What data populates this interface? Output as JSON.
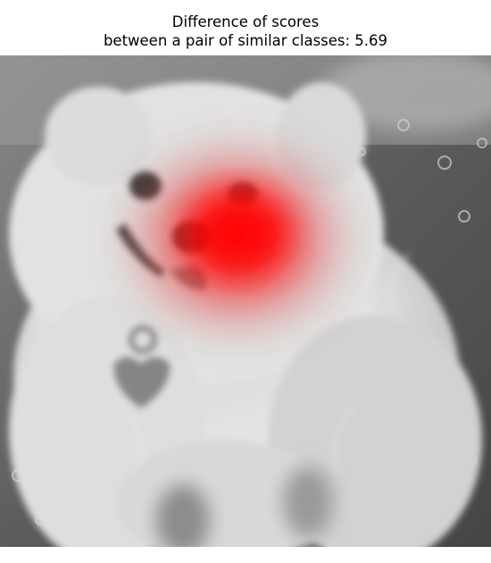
{
  "figure": {
    "title_line_1": "Difference of scores",
    "title_line_2": "between a pair of similar classes: 5.69",
    "image_subject": "grayscale photo of a fluffy white puppy with a heart-shaped tag",
    "overlay": "red saliency heatmap centered on the puppy's snout",
    "colors": {
      "background": "#ffffff",
      "heatmap": "#ff0000",
      "photo_tone": "grayscale"
    }
  }
}
